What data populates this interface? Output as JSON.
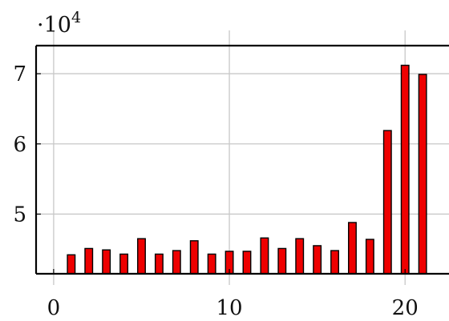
{
  "chart_data": {
    "type": "bar",
    "title": "",
    "xlabel": "",
    "ylabel": "",
    "y_multiplier_text": "·10",
    "y_multiplier_exponent": "4",
    "x_ticks": [
      0,
      10,
      20
    ],
    "y_ticks": [
      50000,
      60000,
      70000
    ],
    "y_tick_labels": [
      "5",
      "6",
      "7"
    ],
    "xlim": [
      -1,
      22.5
    ],
    "ylim": [
      41500,
      74000
    ],
    "grid": true,
    "bar_color": "#ee0000",
    "bar_edge_color": "#000000",
    "x": [
      1,
      2,
      3,
      4,
      5,
      6,
      7,
      8,
      9,
      10,
      11,
      12,
      13,
      14,
      15,
      16,
      17,
      18,
      19,
      20,
      21
    ],
    "values": [
      44200,
      45100,
      44900,
      44300,
      46500,
      44300,
      44800,
      46200,
      44300,
      44700,
      44700,
      46600,
      45100,
      46500,
      45500,
      44800,
      48800,
      46400,
      61900,
      71200,
      69900
    ]
  }
}
